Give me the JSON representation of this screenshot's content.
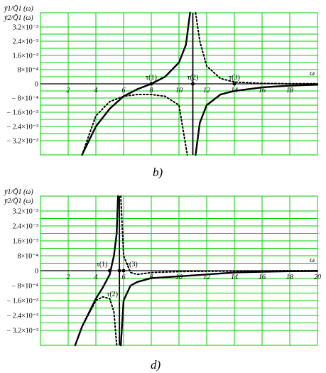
{
  "chart_data": [
    {
      "type": "line",
      "caption": "b)",
      "xlabel": "ω",
      "ylabels": [
        "ȳ1/Q̄1 (ω)",
        "ȳ2/Q̄1 (ω)"
      ],
      "xlim": [
        0,
        20
      ],
      "ylim": [
        -0.004,
        0.004
      ],
      "x_ticks": [
        2,
        4,
        6,
        8,
        10,
        12,
        14,
        16,
        18
      ],
      "y_ticks": [
        0.0032,
        0.0024,
        0.0016,
        0.0008,
        0,
        -0.0008,
        -0.0016,
        -0.0024,
        -0.0032
      ],
      "y_tick_labels": [
        "3.2×10⁻³",
        "2.4×10⁻³",
        "1.6×10⁻³",
        "8×10⁻⁴",
        "0",
        "− 8×10⁻⁴",
        "− 1.6×10⁻³",
        "− 2.4×10⁻³",
        "− 3.2×10⁻³"
      ],
      "pole": 11,
      "series": [
        {
          "style": "solid",
          "x": [
            3,
            4,
            5,
            6,
            7,
            8,
            9,
            10,
            10.5,
            10.8,
            11.2,
            11.5,
            12,
            13,
            14,
            16,
            18,
            20
          ],
          "y": [
            -0.004,
            -0.0024,
            -0.0014,
            -0.0007,
            -0.0003,
            0.0,
            0.0004,
            0.0012,
            0.0022,
            0.004,
            -0.004,
            -0.0022,
            -0.0012,
            -0.0006,
            -0.0004,
            -0.0002,
            -0.0001,
            -5e-05
          ]
        },
        {
          "style": "dotted",
          "x": [
            3,
            4,
            5,
            6,
            7,
            8,
            9,
            10,
            10.6,
            11.2,
            11.5,
            12,
            13,
            14,
            16,
            18,
            20
          ],
          "y": [
            -0.004,
            -0.0018,
            -0.001,
            -0.0007,
            -0.0006,
            -0.0006,
            -0.0007,
            -0.0012,
            -0.004,
            0.004,
            0.0024,
            0.001,
            0.0003,
            0.0001,
            3e-05,
            1e-05,
            1e-05
          ]
        }
      ],
      "points": [
        {
          "x": 8,
          "label": "τ(1)"
        },
        {
          "x": 11,
          "label": "τ(2)"
        },
        {
          "x": 14,
          "label": "τ(3)"
        }
      ]
    },
    {
      "type": "line",
      "caption": "d)",
      "xlabel": "ω",
      "ylabels": [
        "ȳ1/Q̄1 (ω)",
        "ȳ2/Q̄1 (ω)"
      ],
      "xlim": [
        0,
        20
      ],
      "ylim": [
        -0.004,
        0.004
      ],
      "x_ticks": [
        2,
        4,
        6,
        8,
        10,
        12,
        14,
        16,
        18,
        20
      ],
      "y_ticks": [
        0.0032,
        0.0024,
        0.0016,
        0.0008,
        0,
        -0.0008,
        -0.0016,
        -0.0024,
        -0.0032
      ],
      "y_tick_labels": [
        "3.2×10⁻³",
        "2.4×10⁻³",
        "1.6×10⁻³",
        "8×10⁻⁴",
        "0",
        "− 8×10⁻⁴",
        "− 1.6×10⁻³",
        "− 2.4×10⁻³",
        "− 3.2×10⁻³"
      ],
      "pole": 5.7,
      "series": [
        {
          "style": "solid",
          "x": [
            2.5,
            3,
            4,
            4.5,
            5,
            5.3,
            5.5,
            5.6,
            5.8,
            6,
            6.5,
            7,
            8,
            10,
            12,
            14,
            16,
            18,
            20
          ],
          "y": [
            -0.004,
            -0.003,
            -0.0015,
            -0.0009,
            -0.0002,
            0.0008,
            0.002,
            0.004,
            -0.004,
            -0.0016,
            -0.0008,
            -0.0006,
            -0.0004,
            -0.0003,
            -0.0002,
            -0.0001,
            -6e-05,
            -3e-05,
            -2e-05
          ]
        },
        {
          "style": "dotted",
          "x": [
            2.5,
            3,
            4,
            4.5,
            5,
            5.3,
            5.5,
            5.8,
            6,
            6.5,
            7,
            8,
            10,
            12,
            14,
            16,
            18,
            20
          ],
          "y": [
            -0.004,
            -0.003,
            -0.0016,
            -0.0014,
            -0.0015,
            -0.0022,
            -0.004,
            0.004,
            0.0008,
            -0.0001,
            -0.0002,
            -0.0001,
            -5e-05,
            -3e-05,
            -2e-05,
            -1e-05,
            0,
            0
          ]
        }
      ],
      "points": [
        {
          "x": 5.0,
          "label": "τ(1)"
        },
        {
          "x": 5.7,
          "label": "τ(2)"
        },
        {
          "x": 6.0,
          "label": "τ(3)"
        }
      ]
    }
  ]
}
